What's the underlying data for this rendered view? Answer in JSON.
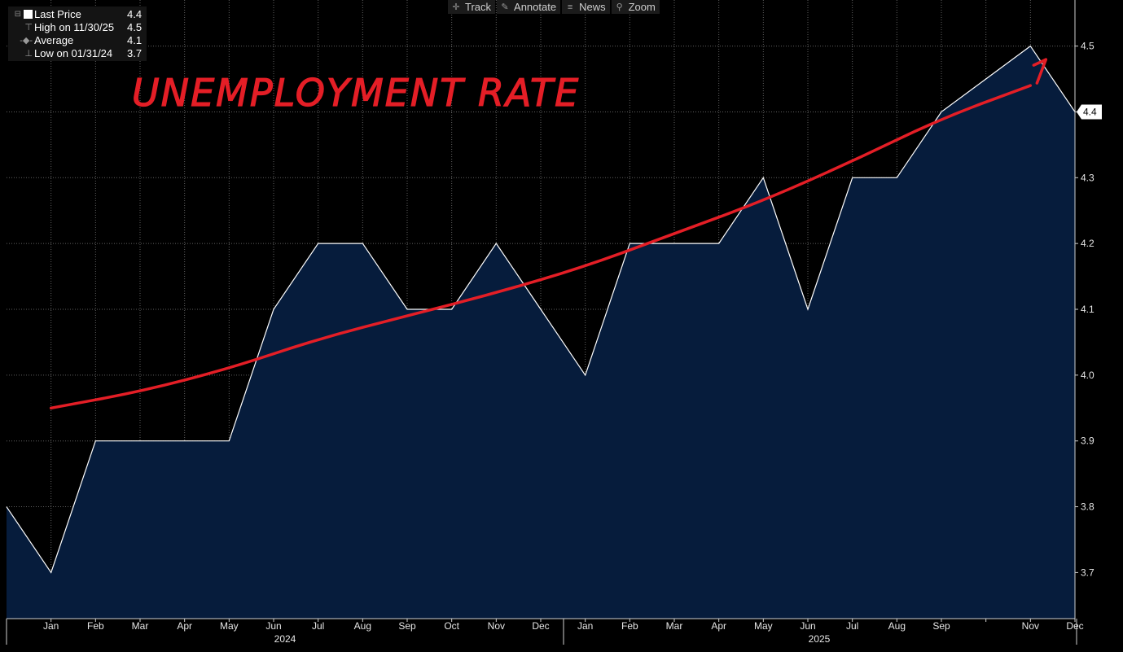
{
  "toolbar": {
    "items": [
      {
        "label": "Track",
        "icon": "crosshair-icon"
      },
      {
        "label": "Annotate",
        "icon": "pencil-icon"
      },
      {
        "label": "News",
        "icon": "news-icon"
      },
      {
        "label": "Zoom",
        "icon": "magnifier-icon"
      }
    ]
  },
  "legend": {
    "last": {
      "label": "Last Price",
      "value": "4.4"
    },
    "high": {
      "label": "High on 11/30/25",
      "value": "4.5"
    },
    "average": {
      "label": "Average",
      "value": "4.1"
    },
    "low": {
      "label": "Low on 01/31/24",
      "value": "3.7"
    }
  },
  "annotation": {
    "text": "UNEMPLOYMENT RATE",
    "color": "#e41e26"
  },
  "colors": {
    "area_fill": "#061c3c",
    "line": "#ffffff",
    "trend": "#e41e26",
    "background": "#000000"
  },
  "chart_data": {
    "type": "area",
    "x": [
      "2023-12",
      "2024-01",
      "2024-02",
      "2024-03",
      "2024-04",
      "2024-05",
      "2024-06",
      "2024-07",
      "2024-08",
      "2024-09",
      "2024-10",
      "2024-11",
      "2024-12",
      "2025-01",
      "2025-02",
      "2025-03",
      "2025-04",
      "2025-05",
      "2025-06",
      "2025-07",
      "2025-08",
      "2025-09",
      "2025-10",
      "2025-11",
      "2025-12"
    ],
    "series": [
      {
        "values": [
          3.8,
          3.7,
          3.9,
          3.9,
          3.9,
          3.9,
          4.1,
          4.2,
          4.2,
          4.1,
          4.1,
          4.2,
          4.1,
          4.0,
          4.2,
          4.2,
          4.2,
          4.3,
          4.1,
          4.3,
          4.3,
          4.4,
          4.45,
          4.5,
          4.4
        ]
      }
    ],
    "month_ticks": [
      "Jan",
      "Feb",
      "Mar",
      "Apr",
      "May",
      "Jun",
      "Jul",
      "Aug",
      "Sep",
      "Oct",
      "Nov",
      "Dec",
      "Jan",
      "Feb",
      "Mar",
      "Apr",
      "May",
      "Jun",
      "Jul",
      "Aug",
      "Sep",
      "Nov",
      "Dec"
    ],
    "year_ticks": [
      "2024",
      "2025"
    ],
    "y_ticks": [
      "3.7",
      "3.8",
      "3.9",
      "4.0",
      "4.1",
      "4.2",
      "4.3",
      "4.4",
      "4.5"
    ],
    "last_value_tag": "4.4",
    "ylim": [
      3.63,
      4.57
    ],
    "grid": true,
    "trend_line": {
      "x": [
        "2024-01",
        "2024-03",
        "2024-05",
        "2024-07",
        "2024-09",
        "2024-11",
        "2025-01",
        "2025-03",
        "2025-05",
        "2025-07",
        "2025-09",
        "2025-11"
      ],
      "values": [
        3.95,
        3.975,
        4.01,
        4.055,
        4.09,
        4.125,
        4.165,
        4.215,
        4.265,
        4.325,
        4.39,
        4.44
      ]
    }
  }
}
